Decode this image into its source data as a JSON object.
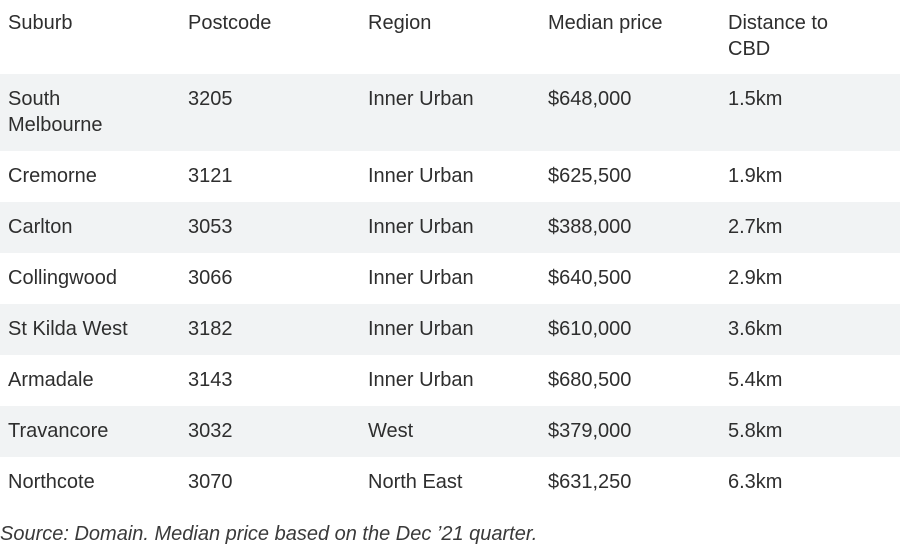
{
  "table": {
    "headers": [
      "Suburb",
      "Postcode",
      "Region",
      "Median price",
      "Distance to CBD"
    ],
    "rows": [
      [
        "South Melbourne",
        "3205",
        "Inner Urban",
        "$648,000",
        "1.5km"
      ],
      [
        "Cremorne",
        "3121",
        "Inner Urban",
        "$625,500",
        "1.9km"
      ],
      [
        "Carlton",
        "3053",
        "Inner Urban",
        "$388,000",
        "2.7km"
      ],
      [
        "Collingwood",
        "3066",
        "Inner Urban",
        "$640,500",
        "2.9km"
      ],
      [
        "St Kilda West",
        "3182",
        "Inner Urban",
        "$610,000",
        "3.6km"
      ],
      [
        "Armadale",
        "3143",
        "Inner Urban",
        "$680,500",
        "5.4km"
      ],
      [
        "Travancore",
        "3032",
        "West",
        "$379,000",
        "5.8km"
      ],
      [
        "Northcote",
        "3070",
        "North East",
        "$631,250",
        "6.3km"
      ]
    ]
  },
  "source_note": "Source: Domain. Median price based on the Dec ’21 quarter.",
  "colors": {
    "stripe": "#f1f3f4",
    "text": "#2e2e2e"
  }
}
